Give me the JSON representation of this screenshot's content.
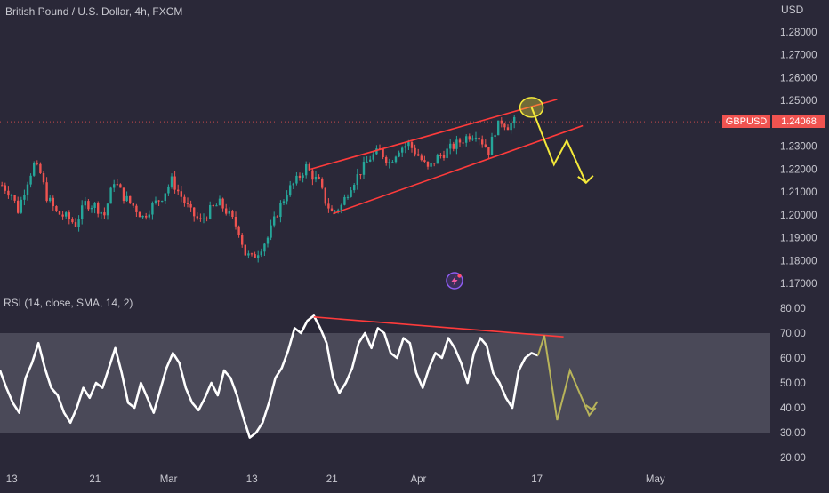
{
  "colors": {
    "background": "#2a2838",
    "up": "#26a69a",
    "down": "#ef5350",
    "channel": "#ff3b3b",
    "arrow": "#f4e93a",
    "rsi_line": "#ffffff",
    "rsi_band": "#4a4958",
    "rsi_projection": "#b8b45a",
    "price_label": "#f05350",
    "axis_text": "#c8c8d0"
  },
  "header": {
    "symbol_title": "British Pound / U.S. Dollar, 4h, FXCM"
  },
  "price_axis": {
    "currency": "USD",
    "ticks": [
      "1.28000",
      "1.27000",
      "1.26000",
      "1.25000",
      "1.24000",
      "1.23000",
      "1.22000",
      "1.21000",
      "1.20000",
      "1.19000",
      "1.18000",
      "1.17000"
    ],
    "tick_values": [
      1.28,
      1.27,
      1.26,
      1.25,
      1.24,
      1.23,
      1.22,
      1.21,
      1.2,
      1.19,
      1.18,
      1.17
    ],
    "badge_symbol": "GBPUSD",
    "badge_price": "1.24068",
    "last_price": 1.24068
  },
  "rsi_panel": {
    "label": "RSI (14, close, SMA, 14, 2)",
    "ticks": [
      "80.00",
      "70.00",
      "60.00",
      "50.00",
      "40.00",
      "30.00",
      "20.00"
    ],
    "tick_values": [
      80,
      70,
      60,
      50,
      40,
      30,
      20
    ],
    "band": [
      30,
      70
    ]
  },
  "time_axis": {
    "labels": [
      "13",
      "21",
      "Mar",
      "13",
      "21",
      "Apr",
      "17",
      "May"
    ]
  },
  "chart_data": [
    {
      "type": "candlestick",
      "title": "British Pound / U.S. Dollar, 4h, FXCM",
      "ylabel": "USD",
      "ylim": [
        1.165,
        1.29
      ],
      "x_ticks": [
        "13",
        "21",
        "Mar",
        "13",
        "21",
        "Apr",
        "17",
        "May"
      ],
      "x_range_bars": [
        0,
        250
      ],
      "x_tick_bar_index": [
        2,
        28,
        51,
        77,
        102,
        129,
        166,
        203
      ],
      "close_path": [
        [
          0,
          1.213
        ],
        [
          3,
          1.209
        ],
        [
          5,
          1.202
        ],
        [
          8,
          1.215
        ],
        [
          10,
          1.222
        ],
        [
          12,
          1.218
        ],
        [
          14,
          1.208
        ],
        [
          17,
          1.201
        ],
        [
          20,
          1.199
        ],
        [
          23,
          1.196
        ],
        [
          26,
          1.205
        ],
        [
          29,
          1.204
        ],
        [
          32,
          1.2
        ],
        [
          35,
          1.215
        ],
        [
          38,
          1.208
        ],
        [
          41,
          1.204
        ],
        [
          44,
          1.199
        ],
        [
          47,
          1.204
        ],
        [
          50,
          1.208
        ],
        [
          53,
          1.215
        ],
        [
          56,
          1.208
        ],
        [
          59,
          1.201
        ],
        [
          62,
          1.197
        ],
        [
          65,
          1.202
        ],
        [
          68,
          1.205
        ],
        [
          71,
          1.2
        ],
        [
          74,
          1.193
        ],
        [
          76,
          1.183
        ],
        [
          78,
          1.181
        ],
        [
          80,
          1.184
        ],
        [
          83,
          1.19
        ],
        [
          86,
          1.201
        ],
        [
          89,
          1.21
        ],
        [
          92,
          1.215
        ],
        [
          95,
          1.221
        ],
        [
          97,
          1.217
        ],
        [
          99,
          1.214
        ],
        [
          101,
          1.206
        ],
        [
          103,
          1.201
        ],
        [
          106,
          1.204
        ],
        [
          109,
          1.213
        ],
        [
          112,
          1.219
        ],
        [
          115,
          1.225
        ],
        [
          118,
          1.228
        ],
        [
          121,
          1.223
        ],
        [
          124,
          1.229
        ],
        [
          127,
          1.231
        ],
        [
          130,
          1.226
        ],
        [
          133,
          1.22
        ],
        [
          136,
          1.225
        ],
        [
          139,
          1.228
        ],
        [
          142,
          1.231
        ],
        [
          145,
          1.234
        ],
        [
          148,
          1.236
        ],
        [
          150,
          1.232
        ],
        [
          152,
          1.228
        ],
        [
          154,
          1.237
        ],
        [
          156,
          1.241
        ],
        [
          158,
          1.239
        ],
        [
          160,
          1.2407
        ]
      ],
      "last_close": 1.24068,
      "trendlines": [
        {
          "name": "channel upper",
          "from": [
            97,
            1.22
          ],
          "to": [
            174,
            1.2505
          ]
        },
        {
          "name": "channel lower",
          "from": [
            104,
            1.2005
          ],
          "to": [
            182,
            1.239
          ]
        }
      ],
      "annotations": [
        {
          "kind": "circle",
          "at": [
            166,
            1.247
          ]
        },
        {
          "kind": "zigzag arrow",
          "points": [
            [
              166,
              1.247
            ],
            [
              173,
              1.222
            ],
            [
              177,
              1.2325
            ],
            [
              183,
              1.214
            ]
          ]
        }
      ]
    },
    {
      "type": "line",
      "title": "RSI (14, close, SMA, 14, 2)",
      "ylim": [
        15,
        85
      ],
      "band": [
        30,
        70
      ],
      "series": [
        {
          "values": [
            [
              0,
              55
            ],
            [
              2,
              48
            ],
            [
              4,
              42
            ],
            [
              6,
              38
            ],
            [
              8,
              52
            ],
            [
              10,
              58
            ],
            [
              12,
              66
            ],
            [
              14,
              56
            ],
            [
              16,
              48
            ],
            [
              18,
              45
            ],
            [
              20,
              38
            ],
            [
              22,
              34
            ],
            [
              24,
              40
            ],
            [
              26,
              48
            ],
            [
              28,
              44
            ],
            [
              30,
              50
            ],
            [
              32,
              48
            ],
            [
              34,
              56
            ],
            [
              36,
              64
            ],
            [
              38,
              54
            ],
            [
              40,
              42
            ],
            [
              42,
              40
            ],
            [
              44,
              50
            ],
            [
              46,
              44
            ],
            [
              48,
              38
            ],
            [
              50,
              47
            ],
            [
              52,
              56
            ],
            [
              54,
              62
            ],
            [
              56,
              58
            ],
            [
              58,
              48
            ],
            [
              60,
              42
            ],
            [
              62,
              39
            ],
            [
              64,
              44
            ],
            [
              66,
              50
            ],
            [
              68,
              45
            ],
            [
              70,
              55
            ],
            [
              72,
              52
            ],
            [
              74,
              45
            ],
            [
              76,
              36
            ],
            [
              78,
              28
            ],
            [
              80,
              30
            ],
            [
              82,
              34
            ],
            [
              84,
              42
            ],
            [
              86,
              52
            ],
            [
              88,
              56
            ],
            [
              90,
              63
            ],
            [
              92,
              72
            ],
            [
              94,
              70
            ],
            [
              96,
              75
            ],
            [
              98,
              77
            ],
            [
              100,
              72
            ],
            [
              102,
              66
            ],
            [
              104,
              52
            ],
            [
              106,
              46
            ],
            [
              108,
              50
            ],
            [
              110,
              56
            ],
            [
              112,
              66
            ],
            [
              114,
              70
            ],
            [
              116,
              64
            ],
            [
              118,
              72
            ],
            [
              120,
              70
            ],
            [
              122,
              62
            ],
            [
              124,
              60
            ],
            [
              126,
              68
            ],
            [
              128,
              66
            ],
            [
              130,
              54
            ],
            [
              132,
              48
            ],
            [
              134,
              56
            ],
            [
              136,
              62
            ],
            [
              138,
              60
            ],
            [
              140,
              68
            ],
            [
              142,
              64
            ],
            [
              144,
              58
            ],
            [
              146,
              50
            ],
            [
              148,
              62
            ],
            [
              150,
              68
            ],
            [
              152,
              65
            ],
            [
              154,
              54
            ],
            [
              156,
              50
            ],
            [
              158,
              44
            ],
            [
              160,
              40
            ],
            [
              162,
              55
            ],
            [
              164,
              60
            ],
            [
              166,
              62
            ],
            [
              168,
              61
            ]
          ]
        }
      ],
      "trendline": {
        "from": [
          98,
          76.5
        ],
        "to": [
          176,
          68.5
        ]
      },
      "projection": [
        [
          168,
          61
        ],
        [
          170,
          69
        ],
        [
          174,
          35
        ],
        [
          178,
          55
        ],
        [
          184,
          37
        ],
        [
          186,
          40
        ]
      ]
    }
  ]
}
